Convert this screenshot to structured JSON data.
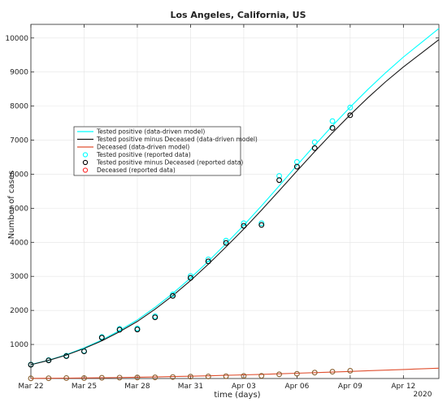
{
  "chart_data": {
    "type": "line",
    "title": "Los Angeles, California, US",
    "xlabel": "time (days)",
    "ylabel": "Number of cases",
    "x_range": [
      "2020-03-22",
      "2020-04-14"
    ],
    "ylim": [
      0,
      10400
    ],
    "x_ticks": [
      {
        "date": "2020-03-22",
        "label": "Mar 22"
      },
      {
        "date": "2020-03-25",
        "label": "Mar 25"
      },
      {
        "date": "2020-03-28",
        "label": "Mar 28"
      },
      {
        "date": "2020-03-31",
        "label": "Mar 31"
      },
      {
        "date": "2020-04-03",
        "label": "Apr 03"
      },
      {
        "date": "2020-04-06",
        "label": "Apr 06"
      },
      {
        "date": "2020-04-09",
        "label": "Apr 09"
      },
      {
        "date": "2020-04-12",
        "label": "Apr 12"
      }
    ],
    "x_year_label": "2020",
    "y_ticks": [
      1000,
      2000,
      3000,
      4000,
      5000,
      6000,
      7000,
      8000,
      9000,
      10000
    ],
    "grid": true,
    "legend_position": "left-middle",
    "series": [
      {
        "name": "Tested positive  (data-driven model)",
        "kind": "line",
        "color": "#00ffff",
        "x": [
          "2020-03-22",
          "2020-03-23",
          "2020-03-24",
          "2020-03-25",
          "2020-03-26",
          "2020-03-27",
          "2020-03-28",
          "2020-03-29",
          "2020-03-30",
          "2020-03-31",
          "2020-04-01",
          "2020-04-02",
          "2020-04-03",
          "2020-04-04",
          "2020-04-05",
          "2020-04-06",
          "2020-04-07",
          "2020-04-08",
          "2020-04-09",
          "2020-04-10",
          "2020-04-11",
          "2020-04-12",
          "2020-04-13",
          "2020-04-14"
        ],
        "y": [
          410,
          540,
          700,
          900,
          1130,
          1410,
          1720,
          2090,
          2500,
          2950,
          3440,
          3960,
          4500,
          5070,
          5660,
          6260,
          6850,
          7420,
          7970,
          8490,
          8980,
          9440,
          9860,
          10280
        ]
      },
      {
        "name": "Tested positive minus Deceased (data-driven model)",
        "kind": "line",
        "color": "#1a1a1a",
        "x": [
          "2020-03-22",
          "2020-03-23",
          "2020-03-24",
          "2020-03-25",
          "2020-03-26",
          "2020-03-27",
          "2020-03-28",
          "2020-03-29",
          "2020-03-30",
          "2020-03-31",
          "2020-04-01",
          "2020-04-02",
          "2020-04-03",
          "2020-04-04",
          "2020-04-05",
          "2020-04-06",
          "2020-04-07",
          "2020-04-08",
          "2020-04-09",
          "2020-04-10",
          "2020-04-11",
          "2020-04-12",
          "2020-04-13",
          "2020-04-14"
        ],
        "y": [
          405,
          532,
          688,
          882,
          1105,
          1375,
          1675,
          2035,
          2435,
          2875,
          3355,
          3865,
          4390,
          4945,
          5515,
          6095,
          6665,
          7215,
          7745,
          8245,
          8715,
          9150,
          9550,
          9950
        ]
      },
      {
        "name": "Deceased (data-driven model)",
        "kind": "line",
        "color": "#e05030",
        "x": [
          "2020-03-22",
          "2020-03-23",
          "2020-03-24",
          "2020-03-25",
          "2020-03-26",
          "2020-03-27",
          "2020-03-28",
          "2020-03-29",
          "2020-03-30",
          "2020-03-31",
          "2020-04-01",
          "2020-04-02",
          "2020-04-03",
          "2020-04-04",
          "2020-04-05",
          "2020-04-06",
          "2020-04-07",
          "2020-04-08",
          "2020-04-09",
          "2020-04-10",
          "2020-04-11",
          "2020-04-12",
          "2020-04-13",
          "2020-04-14"
        ],
        "y": [
          5,
          8,
          12,
          17,
          23,
          30,
          38,
          47,
          57,
          68,
          80,
          93,
          107,
          122,
          138,
          155,
          172,
          190,
          208,
          227,
          246,
          265,
          284,
          303
        ]
      },
      {
        "name": "Tested positive (reported data)",
        "kind": "marker",
        "color": "#00ffff",
        "x": [
          "2020-03-22",
          "2020-03-23",
          "2020-03-24",
          "2020-03-25",
          "2020-03-26",
          "2020-03-27",
          "2020-03-28",
          "2020-03-29",
          "2020-03-30",
          "2020-03-31",
          "2020-04-01",
          "2020-04-02",
          "2020-04-03",
          "2020-04-04",
          "2020-04-05",
          "2020-04-06",
          "2020-04-07",
          "2020-04-08",
          "2020-04-09"
        ],
        "y": [
          410,
          540,
          670,
          810,
          1220,
          1460,
          1470,
          1830,
          2470,
          3010,
          3500,
          4050,
          4560,
          4560,
          5950,
          6360,
          6940,
          7560,
          7960
        ]
      },
      {
        "name": "Tested positive minus Deceased  (reported data)",
        "kind": "marker",
        "color": "#000000",
        "x": [
          "2020-03-22",
          "2020-03-23",
          "2020-03-24",
          "2020-03-25",
          "2020-03-26",
          "2020-03-27",
          "2020-03-28",
          "2020-03-29",
          "2020-03-30",
          "2020-03-31",
          "2020-04-01",
          "2020-04-02",
          "2020-04-03",
          "2020-04-04",
          "2020-04-05",
          "2020-04-06",
          "2020-04-07",
          "2020-04-08",
          "2020-04-09"
        ],
        "y": [
          405,
          532,
          657,
          797,
          1199,
          1434,
          1440,
          1797,
          2426,
          2956,
          3439,
          3982,
          4484,
          4510,
          5826,
          6222,
          6767,
          7360,
          7732
        ]
      },
      {
        "name": "Deceased  (reported data)",
        "kind": "marker",
        "color": "#ff2a2a",
        "edgecolor": "#8a6030",
        "x": [
          "2020-03-22",
          "2020-03-23",
          "2020-03-24",
          "2020-03-25",
          "2020-03-26",
          "2020-03-27",
          "2020-03-28",
          "2020-03-29",
          "2020-03-30",
          "2020-03-31",
          "2020-04-01",
          "2020-04-02",
          "2020-04-03",
          "2020-04-04",
          "2020-04-05",
          "2020-04-06",
          "2020-04-07",
          "2020-04-08",
          "2020-04-09"
        ],
        "y": [
          5,
          8,
          13,
          13,
          21,
          26,
          30,
          33,
          44,
          54,
          61,
          68,
          76,
          78,
          124,
          138,
          173,
          200,
          228
        ]
      }
    ]
  }
}
